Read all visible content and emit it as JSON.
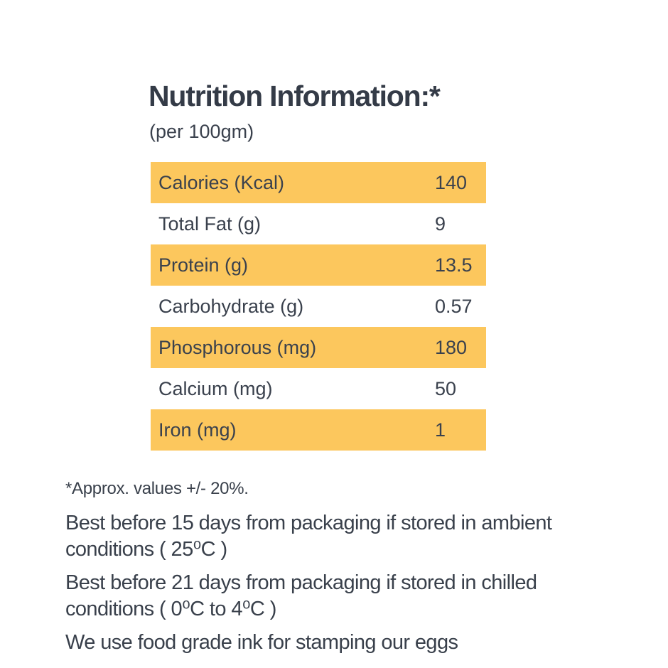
{
  "colors": {
    "highlight": "#fcc75d",
    "text_dark": "#343b47"
  },
  "header": {
    "title": "Nutrition Information:*",
    "subtitle": "(per 100gm)"
  },
  "table": {
    "rows": [
      {
        "label": "Calories (Kcal)",
        "value": "140",
        "highlighted": true
      },
      {
        "label": "Total Fat (g)",
        "value": "9",
        "highlighted": false
      },
      {
        "label": "Protein (g)",
        "value": "13.5",
        "highlighted": true
      },
      {
        "label": "Carbohydrate (g)",
        "value": "0.57",
        "highlighted": false
      },
      {
        "label": "Phosphorous (mg)",
        "value": "180",
        "highlighted": true
      },
      {
        "label": "Calcium (mg)",
        "value": "50",
        "highlighted": false
      },
      {
        "label": "Iron (mg)",
        "value": "1",
        "highlighted": true
      }
    ]
  },
  "footer": {
    "footnote": "*Approx. values +/- 20%.",
    "notes": [
      "Best before 15 days from packaging if stored in ambient conditions ( 25⁰C )",
      "Best before 21 days from packaging if stored in chilled conditions ( 0⁰C to 4⁰C )",
      "We use food grade ink for stamping our eggs"
    ]
  }
}
